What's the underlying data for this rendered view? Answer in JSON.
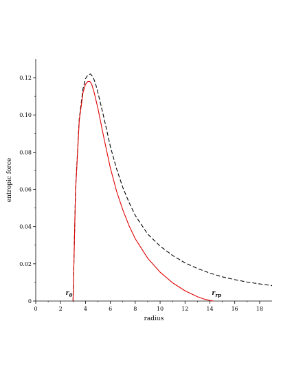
{
  "chart_data": {
    "type": "line",
    "title": "",
    "xlabel": "radius",
    "ylabel": "entropic force",
    "xlim": [
      0,
      19
    ],
    "ylim": [
      0,
      0.13
    ],
    "x_ticks": [
      0,
      2,
      4,
      6,
      8,
      10,
      12,
      14,
      16,
      18
    ],
    "y_ticks": [
      0,
      0.02,
      0.04,
      0.06,
      0.08,
      0.1,
      0.12
    ],
    "y_tick_labels": [
      "0",
      "0.02",
      "0.04",
      "0.06",
      "0.08",
      "0.10",
      "0.12"
    ],
    "grid": false,
    "series": [
      {
        "color": "#000000",
        "line_style": "dashed",
        "x": [
          3.0,
          3.2,
          3.5,
          3.8,
          4.0,
          4.2,
          4.4,
          4.6,
          4.8,
          5.0,
          5.5,
          6.0,
          6.5,
          7.0,
          7.5,
          8.0,
          9.0,
          10.0,
          11.0,
          12.0,
          13.0,
          14.0,
          15.0,
          16.0,
          17.0,
          18.0,
          19.0
        ],
        "y": [
          0.0,
          0.06,
          0.098,
          0.114,
          0.1195,
          0.1215,
          0.122,
          0.1205,
          0.117,
          0.112,
          0.098,
          0.083,
          0.071,
          0.061,
          0.053,
          0.046,
          0.036,
          0.0295,
          0.0245,
          0.0205,
          0.0175,
          0.015,
          0.013,
          0.0115,
          0.0102,
          0.0092,
          0.0083
        ]
      },
      {
        "color": "#e00000",
        "line_style": "solid",
        "x": [
          3.0,
          3.2,
          3.5,
          3.8,
          4.0,
          4.2,
          4.35,
          4.5,
          4.7,
          5.0,
          5.5,
          6.0,
          6.5,
          7.0,
          7.5,
          8.0,
          9.0,
          10.0,
          11.0,
          12.0,
          13.0,
          13.5,
          14.0,
          14.3
        ],
        "y": [
          0.0,
          0.059,
          0.097,
          0.112,
          0.1165,
          0.118,
          0.118,
          0.1165,
          0.112,
          0.1035,
          0.087,
          0.0715,
          0.059,
          0.049,
          0.0405,
          0.0335,
          0.023,
          0.0155,
          0.0098,
          0.0055,
          0.0023,
          0.0011,
          0.0003,
          0.0
        ]
      }
    ],
    "annotations": [
      {
        "main": "r",
        "sub": "0",
        "x": 2.85,
        "y": 0.0025
      },
      {
        "main": "r",
        "sub": "rp",
        "x": 14.6,
        "y": 0.0025
      }
    ]
  }
}
